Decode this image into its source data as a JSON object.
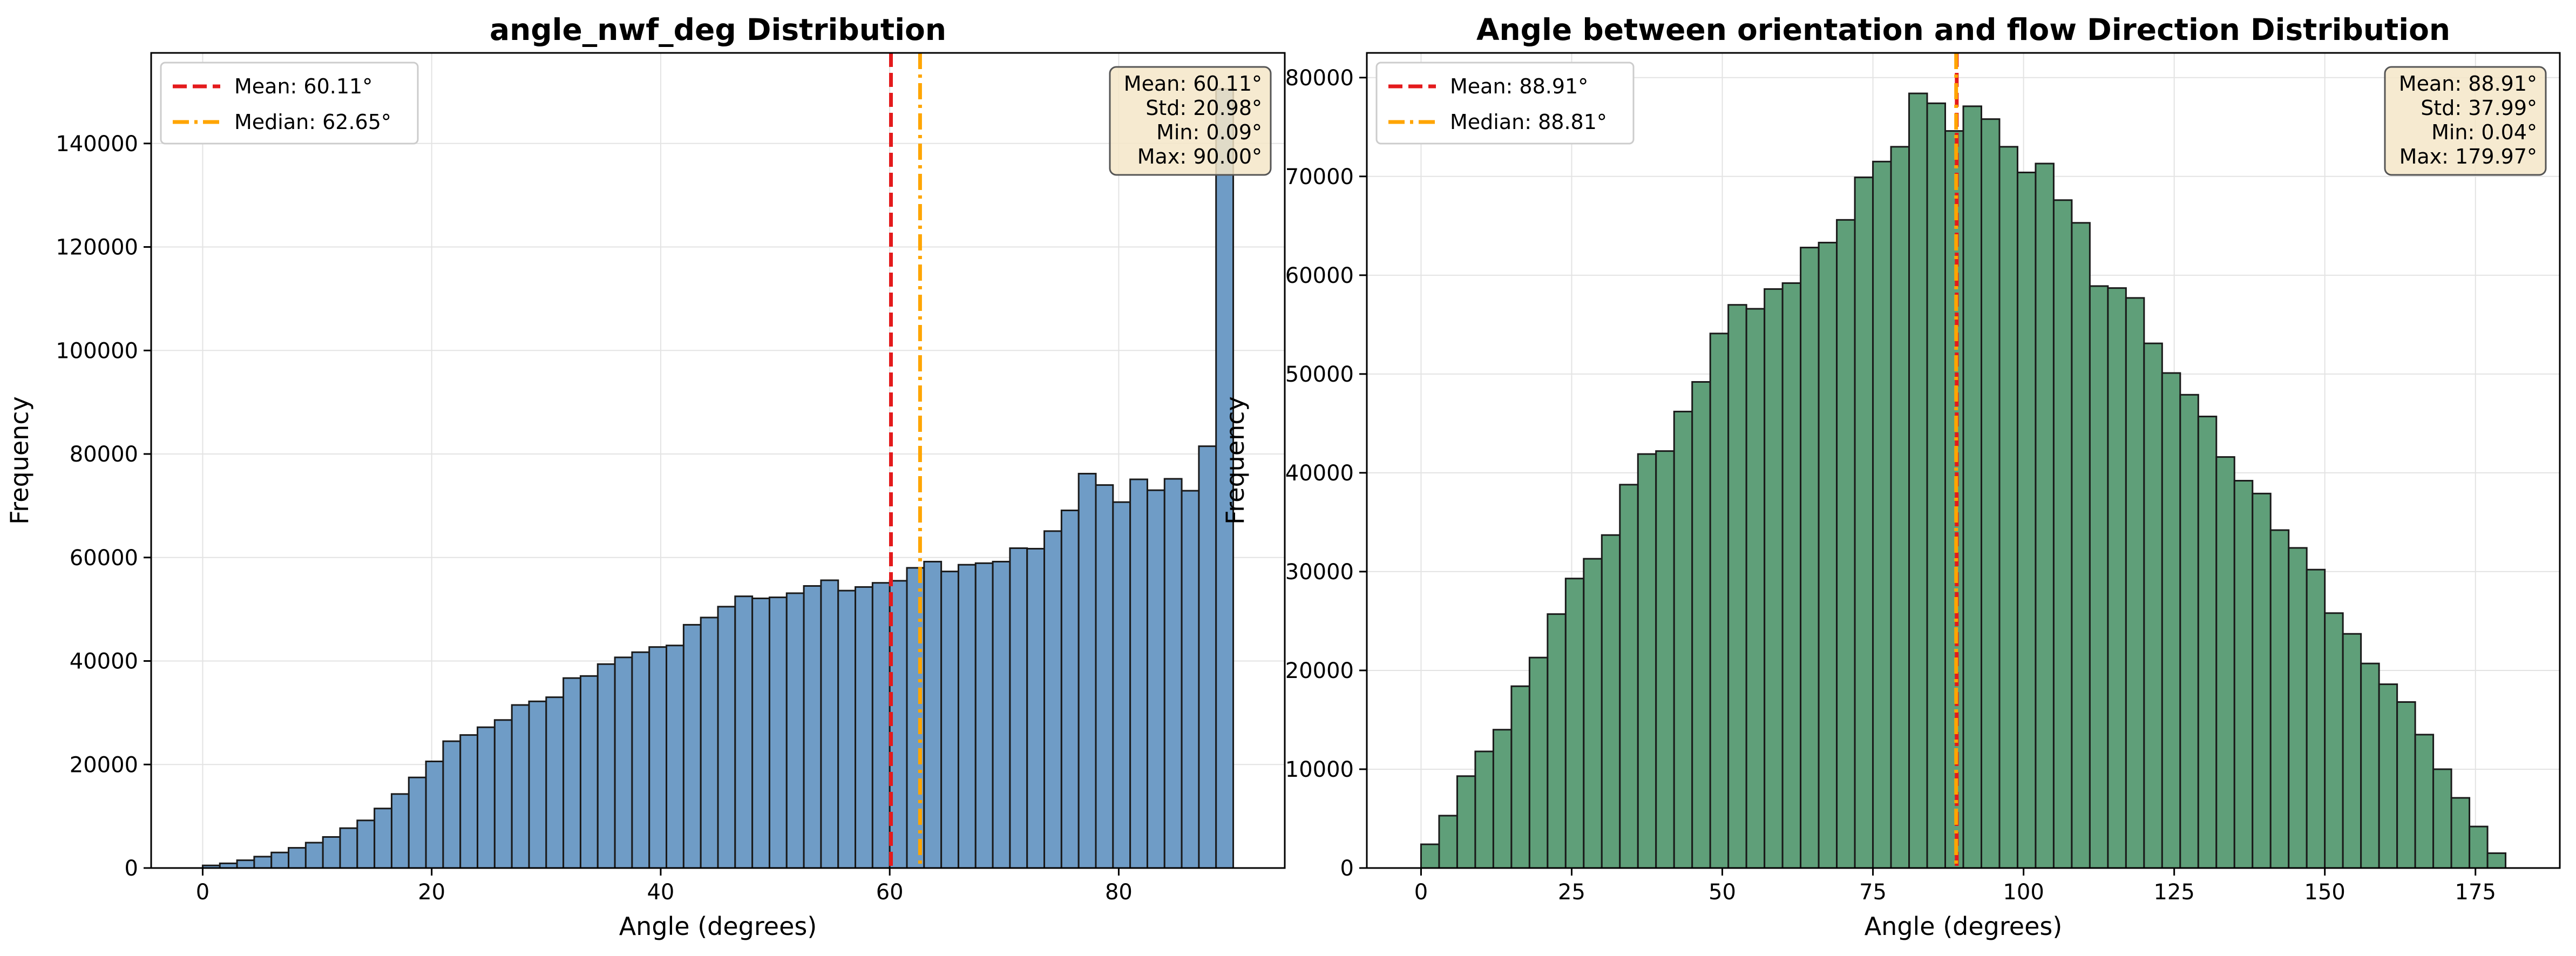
{
  "chart_data": [
    {
      "type": "bar",
      "title": "angle_nwf_deg Distribution",
      "xlabel": "Angle (degrees)",
      "ylabel": "Frequency",
      "xlim": [
        -4.5,
        94.5
      ],
      "ylim": [
        0,
        157500
      ],
      "xticks": [
        0,
        20,
        40,
        60,
        80
      ],
      "yticks": [
        0,
        20000,
        40000,
        60000,
        80000,
        100000,
        120000,
        140000
      ],
      "grid": true,
      "bar_color": "#6f9cc6",
      "bin_start": 0,
      "bin_width": 1.5,
      "values": [
        500,
        900,
        1500,
        2200,
        3000,
        3900,
        4900,
        6000,
        7700,
        9200,
        11500,
        14300,
        17500,
        20600,
        24500,
        25700,
        27200,
        28600,
        31500,
        32200,
        33000,
        36700,
        37100,
        39400,
        40700,
        41700,
        42700,
        43000,
        47000,
        48400,
        50500,
        52500,
        52100,
        52300,
        53100,
        54500,
        55600,
        53600,
        54300,
        55100,
        55500,
        58000,
        59200,
        57300,
        58600,
        58900,
        59200,
        61800,
        61700,
        65100,
        69100,
        76200,
        74000,
        70700,
        75100,
        73000,
        75200,
        72900,
        81500,
        150500
      ],
      "lines": [
        {
          "label": "Mean: 60.11°",
          "x": 60.11,
          "color": "#e41a1c",
          "style": "dashed"
        },
        {
          "label": "Median: 62.65°",
          "x": 62.65,
          "color": "#ffa500",
          "style": "dashdot"
        }
      ],
      "legend_position": "upper left",
      "stats_box": [
        "Mean: 60.11°",
        "Std: 20.98°",
        "Min: 0.09°",
        "Max: 90.00°"
      ]
    },
    {
      "type": "bar",
      "title": "Angle between orientation and flow Direction Distribution",
      "xlabel": "Angle (degrees)",
      "ylabel": "Frequency",
      "xlim": [
        -9,
        189
      ],
      "ylim": [
        0,
        82500
      ],
      "xticks": [
        0,
        25,
        50,
        75,
        100,
        125,
        150,
        175
      ],
      "yticks": [
        0,
        10000,
        20000,
        30000,
        40000,
        50000,
        60000,
        70000,
        80000
      ],
      "grid": true,
      "bar_color": "#5f9f79",
      "bin_start": 0,
      "bin_width": 3,
      "values": [
        2400,
        5300,
        9300,
        11800,
        14000,
        18400,
        21300,
        25700,
        29300,
        31300,
        33700,
        38800,
        41900,
        42200,
        46200,
        49200,
        54100,
        57000,
        56600,
        58600,
        59200,
        62800,
        63300,
        65600,
        69900,
        71500,
        73000,
        78400,
        77400,
        74600,
        77100,
        75800,
        73000,
        70400,
        71300,
        67600,
        65300,
        58900,
        58700,
        57700,
        53100,
        50100,
        47900,
        45700,
        41600,
        39200,
        37900,
        34200,
        32400,
        30200,
        25800,
        23700,
        20700,
        18600,
        16800,
        13500,
        10000,
        7100,
        4200,
        1500
      ],
      "lines": [
        {
          "label": "Mean: 88.91°",
          "x": 88.91,
          "color": "#e41a1c",
          "style": "dashed"
        },
        {
          "label": "Median: 88.81°",
          "x": 88.81,
          "color": "#ffa500",
          "style": "dashdot"
        }
      ],
      "legend_position": "upper left",
      "stats_box": [
        "Mean: 88.91°",
        "Std: 37.99°",
        "Min: 0.04°",
        "Max: 179.97°"
      ]
    }
  ]
}
